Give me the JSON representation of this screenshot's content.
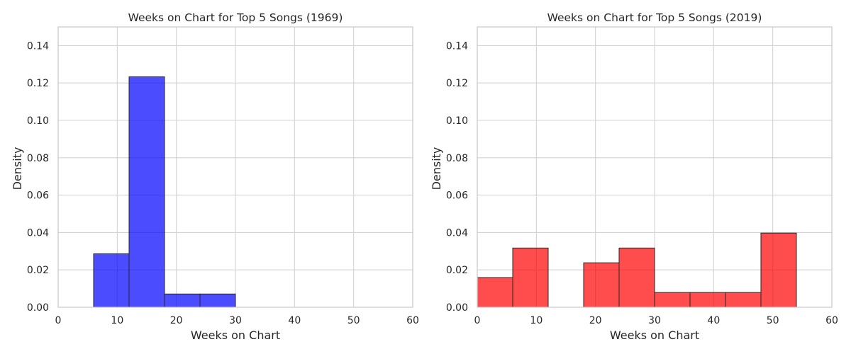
{
  "chart_data": [
    {
      "type": "bar",
      "title": "Weeks on Chart for Top 5 Songs (1969)",
      "xlabel": "Weeks on Chart",
      "ylabel": "Density",
      "xlim": [
        0,
        60
      ],
      "ylim": [
        0,
        0.15
      ],
      "xticks": [
        "0",
        "10",
        "20",
        "30",
        "40",
        "50",
        "60"
      ],
      "yticks": [
        "0.00",
        "0.02",
        "0.04",
        "0.06",
        "0.08",
        "0.10",
        "0.12",
        "0.14"
      ],
      "grid": true,
      "color": "#0000ff",
      "bins": [
        {
          "x0": 6,
          "x1": 12,
          "density": 0.0286
        },
        {
          "x0": 12,
          "x1": 18,
          "density": 0.1233
        },
        {
          "x0": 18,
          "x1": 24,
          "density": 0.0071
        },
        {
          "x0": 24,
          "x1": 30,
          "density": 0.0071
        }
      ]
    },
    {
      "type": "bar",
      "title": "Weeks on Chart for Top 5 Songs (2019)",
      "xlabel": "Weeks on Chart",
      "ylabel": "Density",
      "xlim": [
        0,
        60
      ],
      "ylim": [
        0,
        0.15
      ],
      "xticks": [
        "0",
        "10",
        "20",
        "30",
        "40",
        "50",
        "60"
      ],
      "yticks": [
        "0.00",
        "0.02",
        "0.04",
        "0.06",
        "0.08",
        "0.10",
        "0.12",
        "0.14"
      ],
      "grid": true,
      "color": "#ff0000",
      "bins": [
        {
          "x0": 0,
          "x1": 6,
          "density": 0.0159
        },
        {
          "x0": 6,
          "x1": 12,
          "density": 0.0317
        },
        {
          "x0": 12,
          "x1": 18,
          "density": 0
        },
        {
          "x0": 18,
          "x1": 24,
          "density": 0.0238
        },
        {
          "x0": 24,
          "x1": 30,
          "density": 0.0317
        },
        {
          "x0": 30,
          "x1": 36,
          "density": 0.0079
        },
        {
          "x0": 36,
          "x1": 42,
          "density": 0.0079
        },
        {
          "x0": 42,
          "x1": 48,
          "density": 0.0079
        },
        {
          "x0": 48,
          "x1": 54,
          "density": 0.0397
        }
      ]
    }
  ]
}
